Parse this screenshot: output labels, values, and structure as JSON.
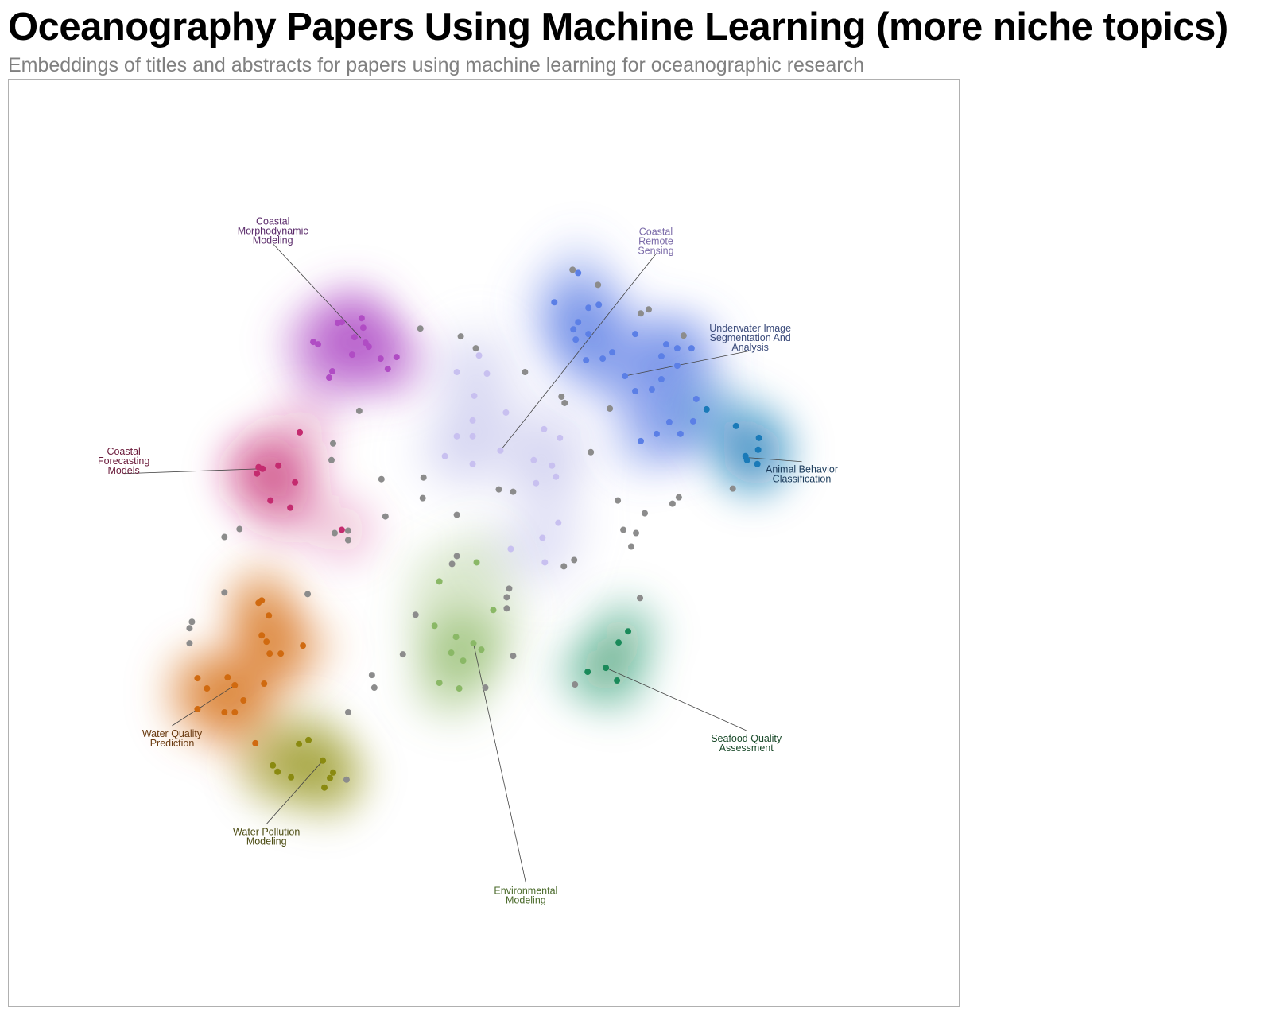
{
  "title": "Oceanography Papers Using Machine Learning (more niche topics)",
  "subtitle": "Embeddings of titles and abstracts for papers using machine learning for oceanographic research",
  "chart_data": {
    "type": "scatter",
    "xlim": [
      0,
      1200
    ],
    "ylim": [
      0,
      1170
    ],
    "grid": false,
    "legend": "none",
    "noise_color": "#8c8c8c",
    "clusters": [
      {
        "name": "coastal-morphodynamic-modeling",
        "label": [
          "Coastal",
          "Morphodynamic",
          "Modeling"
        ],
        "color": "#b04cc4",
        "label_color": "#5a2a6a",
        "label_pos": [
          333,
          190
        ],
        "anchor": [
          444,
          325
        ],
        "points": [
          [
            415,
            306
          ],
          [
            420,
            305
          ],
          [
            445,
            300
          ],
          [
            447,
            312
          ],
          [
            436,
            324
          ],
          [
            384,
            330
          ],
          [
            390,
            333
          ],
          [
            450,
            331
          ],
          [
            454,
            336
          ],
          [
            433,
            346
          ],
          [
            469,
            351
          ],
          [
            489,
            349
          ],
          [
            478,
            364
          ],
          [
            408,
            367
          ],
          [
            404,
            375
          ]
        ]
      },
      {
        "name": "coastal-forecasting-models",
        "label": [
          "Coastal",
          "Forecasting",
          "Models"
        ],
        "color": "#c42b6f",
        "label_color": "#6a1a3a",
        "label_pos": [
          145,
          480
        ],
        "anchor": [
          318,
          490
        ],
        "points": [
          [
            367,
            444
          ],
          [
            340,
            486
          ],
          [
            315,
            488
          ],
          [
            320,
            490
          ],
          [
            313,
            496
          ],
          [
            361,
            507
          ],
          [
            330,
            530
          ],
          [
            355,
            539
          ],
          [
            420,
            567
          ]
        ]
      },
      {
        "name": "coastal-remote-sensing",
        "label": [
          "Coastal",
          "Remote",
          "Sensing"
        ],
        "color": "#c8c0f0",
        "label_color": "#7a6aa8",
        "label_pos": [
          816,
          203
        ],
        "anchor": [
          620,
          467
        ],
        "points": [
          [
            565,
            368
          ],
          [
            603,
            370
          ],
          [
            593,
            347
          ],
          [
            587,
            398
          ],
          [
            627,
            419
          ],
          [
            585,
            429
          ],
          [
            565,
            449
          ],
          [
            585,
            449
          ],
          [
            620,
            467
          ],
          [
            550,
            474
          ],
          [
            585,
            484
          ],
          [
            675,
            440
          ],
          [
            695,
            451
          ],
          [
            662,
            479
          ],
          [
            685,
            486
          ],
          [
            690,
            500
          ],
          [
            665,
            508
          ],
          [
            693,
            558
          ],
          [
            673,
            577
          ],
          [
            633,
            591
          ],
          [
            676,
            608
          ]
        ]
      },
      {
        "name": "underwater-image-segmentation-and-analysis",
        "label": [
          "Underwater Image",
          "Segmentation And",
          "Analysis"
        ],
        "color": "#5b7fe6",
        "label_color": "#3a4a7a",
        "label_pos": [
          935,
          325
        ],
        "anchor": [
          777,
          373
        ],
        "points": [
          [
            718,
            243
          ],
          [
            688,
            280
          ],
          [
            731,
            287
          ],
          [
            744,
            283
          ],
          [
            718,
            305
          ],
          [
            790,
            320
          ],
          [
            712,
            314
          ],
          [
            731,
            320
          ],
          [
            715,
            327
          ],
          [
            761,
            343
          ],
          [
            829,
            333
          ],
          [
            843,
            338
          ],
          [
            861,
            338
          ],
          [
            823,
            348
          ],
          [
            843,
            360
          ],
          [
            749,
            351
          ],
          [
            728,
            353
          ],
          [
            777,
            373
          ],
          [
            823,
            377
          ],
          [
            790,
            392
          ],
          [
            811,
            390
          ],
          [
            867,
            402
          ],
          [
            833,
            431
          ],
          [
            817,
            446
          ],
          [
            797,
            455
          ],
          [
            847,
            446
          ],
          [
            863,
            430
          ]
        ]
      },
      {
        "name": "animal-behavior-classification",
        "label": [
          "Animal Behavior",
          "Classification"
        ],
        "color": "#1a7ab8",
        "label_color": "#1a3a5a",
        "label_pos": [
          1000,
          497
        ],
        "anchor": [
          933,
          476
        ],
        "points": [
          [
            880,
            415
          ],
          [
            917,
            436
          ],
          [
            946,
            451
          ],
          [
            945,
            466
          ],
          [
            929,
            474
          ],
          [
            931,
            479
          ],
          [
            944,
            484
          ]
        ]
      },
      {
        "name": "water-quality-prediction",
        "label": [
          "Water Quality",
          "Prediction"
        ],
        "color": "#d06a10",
        "label_color": "#6a3a10",
        "label_pos": [
          206,
          830
        ],
        "anchor": [
          285,
          763
        ],
        "points": [
          [
            319,
            656
          ],
          [
            315,
            659
          ],
          [
            328,
            675
          ],
          [
            319,
            700
          ],
          [
            325,
            708
          ],
          [
            371,
            713
          ],
          [
            343,
            723
          ],
          [
            329,
            723
          ],
          [
            322,
            761
          ],
          [
            238,
            754
          ],
          [
            250,
            767
          ],
          [
            276,
            753
          ],
          [
            285,
            763
          ],
          [
            296,
            782
          ],
          [
            238,
            793
          ],
          [
            272,
            797
          ],
          [
            285,
            797
          ],
          [
            311,
            836
          ]
        ]
      },
      {
        "name": "water-pollution-modeling",
        "label": [
          "Water Pollution",
          "Modeling"
        ],
        "color": "#8a8a10",
        "label_color": "#4a4a10",
        "label_pos": [
          325,
          954
        ],
        "anchor": [
          396,
          858
        ],
        "points": [
          [
            378,
            832
          ],
          [
            366,
            837
          ],
          [
            396,
            858
          ],
          [
            333,
            864
          ],
          [
            339,
            872
          ],
          [
            356,
            879
          ],
          [
            409,
            873
          ],
          [
            405,
            880
          ],
          [
            398,
            892
          ]
        ]
      },
      {
        "name": "environmental-modeling",
        "label": [
          "Environmental",
          "Modeling"
        ],
        "color": "#8ab866",
        "label_color": "#4a6a2a",
        "label_pos": [
          652,
          1028
        ],
        "anchor": [
          586,
          710
        ],
        "points": [
          [
            590,
            608
          ],
          [
            543,
            632
          ],
          [
            611,
            668
          ],
          [
            537,
            688
          ],
          [
            564,
            702
          ],
          [
            586,
            710
          ],
          [
            596,
            718
          ],
          [
            558,
            722
          ],
          [
            573,
            732
          ],
          [
            543,
            760
          ],
          [
            568,
            767
          ]
        ]
      },
      {
        "name": "seafood-quality-assessment",
        "label": [
          "Seafood Quality",
          "Assessment"
        ],
        "color": "#1a8a5a",
        "label_color": "#1a4a2a",
        "label_pos": [
          930,
          836
        ],
        "anchor": [
          753,
          741
        ],
        "points": [
          [
            781,
            695
          ],
          [
            769,
            709
          ],
          [
            753,
            741
          ],
          [
            730,
            746
          ],
          [
            767,
            757
          ]
        ]
      }
    ],
    "noise": [
      [
        711,
        239
      ],
      [
        743,
        258
      ],
      [
        797,
        294
      ],
      [
        807,
        289
      ],
      [
        519,
        313
      ],
      [
        570,
        323
      ],
      [
        589,
        338
      ],
      [
        651,
        368
      ],
      [
        851,
        322
      ],
      [
        697,
        399
      ],
      [
        701,
        407
      ],
      [
        758,
        414
      ],
      [
        442,
        417
      ],
      [
        409,
        458
      ],
      [
        407,
        479
      ],
      [
        734,
        469
      ],
      [
        470,
        503
      ],
      [
        523,
        501
      ],
      [
        618,
        516
      ],
      [
        475,
        550
      ],
      [
        522,
        527
      ],
      [
        565,
        548
      ],
      [
        768,
        530
      ],
      [
        845,
        526
      ],
      [
        837,
        534
      ],
      [
        636,
        519
      ],
      [
        802,
        546
      ],
      [
        775,
        567
      ],
      [
        791,
        571
      ],
      [
        785,
        588
      ],
      [
        700,
        613
      ],
      [
        713,
        605
      ],
      [
        565,
        600
      ],
      [
        559,
        610
      ],
      [
        631,
        641
      ],
      [
        628,
        652
      ],
      [
        628,
        666
      ],
      [
        377,
        648
      ],
      [
        272,
        646
      ],
      [
        231,
        683
      ],
      [
        228,
        691
      ],
      [
        228,
        710
      ],
      [
        513,
        674
      ],
      [
        497,
        724
      ],
      [
        458,
        750
      ],
      [
        461,
        766
      ],
      [
        428,
        797
      ],
      [
        636,
        726
      ],
      [
        601,
        766
      ],
      [
        714,
        762
      ],
      [
        796,
        653
      ],
      [
        272,
        576
      ],
      [
        291,
        566
      ],
      [
        411,
        571
      ],
      [
        428,
        568
      ],
      [
        428,
        580
      ],
      [
        913,
        515
      ],
      [
        426,
        882
      ]
    ]
  }
}
